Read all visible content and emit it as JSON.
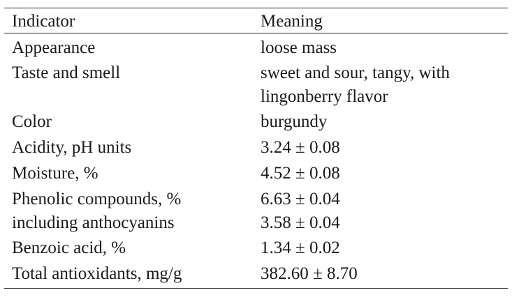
{
  "table": {
    "headers": [
      "Indicator",
      "Meaning"
    ],
    "rows": [
      {
        "indicator": [
          "Appearance"
        ],
        "meaning": [
          "loose mass"
        ]
      },
      {
        "indicator": [
          "Taste and smell"
        ],
        "meaning": [
          "sweet and sour, tangy, with",
          "lingonberry flavor"
        ]
      },
      {
        "indicator": [
          "Color"
        ],
        "meaning": [
          "burgundy"
        ]
      },
      {
        "indicator": [
          "Acidity, pH units"
        ],
        "meaning": [
          "3.24 ± 0.08"
        ]
      },
      {
        "indicator": [
          "Moisture, %"
        ],
        "meaning": [
          "4.52 ± 0.08"
        ]
      },
      {
        "indicator": [
          "Phenolic compounds, %",
          "including anthocyanins"
        ],
        "meaning": [
          "6.63 ± 0.04",
          "3.58 ± 0.04"
        ]
      },
      {
        "indicator": [
          "Benzoic acid, %"
        ],
        "meaning": [
          "1.34 ± 0.02"
        ]
      },
      {
        "indicator": [
          "Total antioxidants, mg/g"
        ],
        "meaning": [
          "382.60 ± 8.70"
        ]
      }
    ]
  }
}
